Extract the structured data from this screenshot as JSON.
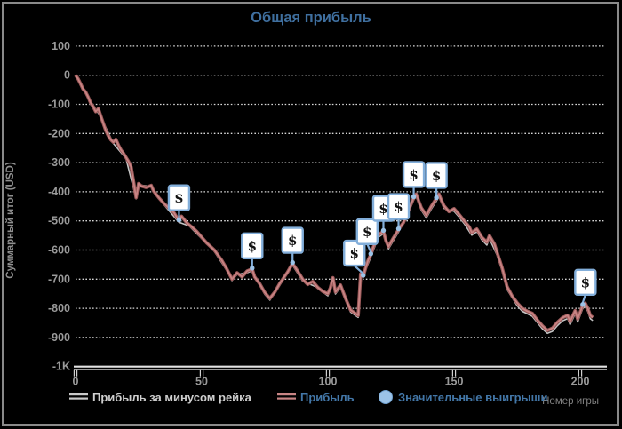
{
  "window": {
    "background": "#000000",
    "border_color": "#8a8a8a"
  },
  "title": "Общая прибыль",
  "title_color": "#3f6f9f",
  "axis_titles": {
    "y": "Суммарный итог (USD)",
    "x": "Номер игры"
  },
  "legend": {
    "items": [
      {
        "label": "Прибыль за минусом рейка",
        "swatch": "line",
        "color": "#c9c9c9",
        "label_color": "#cecece"
      },
      {
        "label": "Прибыль",
        "swatch": "line",
        "color": "#c98585",
        "label_color": "#4377a8"
      },
      {
        "label": "Значительные выигрыши",
        "swatch": "circle",
        "color": "#9cc3e8",
        "label_color": "#4377a8"
      }
    ]
  },
  "chart_data": {
    "type": "line",
    "title": "Общая прибыль",
    "xlabel": "Номер игры",
    "ylabel": "Суммарный итог (USD)",
    "xlim": [
      0,
      210
    ],
    "ylim": [
      -1000,
      100
    ],
    "grid": "dotted-horizontal",
    "legend_position": "bottom",
    "x_ticks": [
      {
        "v": 0,
        "label": "0"
      },
      {
        "v": 50,
        "label": "50"
      },
      {
        "v": 100,
        "label": "100"
      },
      {
        "v": 150,
        "label": "150"
      },
      {
        "v": 200,
        "label": "200"
      }
    ],
    "y_ticks": [
      {
        "v": 100,
        "label": "100"
      },
      {
        "v": 0,
        "label": "0"
      },
      {
        "v": -100,
        "label": "-100"
      },
      {
        "v": -200,
        "label": "-200"
      },
      {
        "v": -300,
        "label": "-300"
      },
      {
        "v": -400,
        "label": "-400"
      },
      {
        "v": -500,
        "label": "-500"
      },
      {
        "v": -600,
        "label": "-600"
      },
      {
        "v": -700,
        "label": "-700"
      },
      {
        "v": -800,
        "label": "-800"
      },
      {
        "v": -900,
        "label": "-900"
      },
      {
        "v": -1000,
        "label": "-1K"
      }
    ],
    "colors": {
      "grid": "#d8d8d8",
      "axis_top": "#e2e2e2",
      "axis_bottom": "#9a9a9a",
      "tick_label": "#9a9a9a"
    },
    "series": [
      {
        "name": "Прибыль за минусом рейка",
        "color": "#c4c4c4",
        "points": [
          [
            0,
            -3
          ],
          [
            5,
            -78
          ],
          [
            10,
            -143
          ],
          [
            15,
            -234
          ],
          [
            20,
            -286
          ],
          [
            24,
            -424
          ],
          [
            25,
            -376
          ],
          [
            30,
            -382
          ],
          [
            35,
            -444
          ],
          [
            41,
            -505
          ],
          [
            45,
            -517
          ],
          [
            50,
            -561
          ],
          [
            55,
            -605
          ],
          [
            60,
            -671
          ],
          [
            62,
            -705
          ],
          [
            64,
            -684
          ],
          [
            68,
            -678
          ],
          [
            70,
            -671
          ],
          [
            75,
            -752
          ],
          [
            77,
            -772
          ],
          [
            81,
            -720
          ],
          [
            86,
            -652
          ],
          [
            90,
            -707
          ],
          [
            95,
            -725
          ],
          [
            100,
            -757
          ],
          [
            102,
            -702
          ],
          [
            103,
            -751
          ],
          [
            105,
            -727
          ],
          [
            107,
            -773
          ],
          [
            109,
            -813
          ],
          [
            112,
            -831
          ],
          [
            113,
            -688
          ],
          [
            115,
            -668
          ],
          [
            117,
            -624
          ],
          [
            120,
            -556
          ],
          [
            122,
            -544
          ],
          [
            124,
            -596
          ],
          [
            128,
            -538
          ],
          [
            132,
            -470
          ],
          [
            134,
            -428
          ],
          [
            135,
            -416
          ],
          [
            137,
            -463
          ],
          [
            139,
            -490
          ],
          [
            141,
            -459
          ],
          [
            143,
            -432
          ],
          [
            144,
            -417
          ],
          [
            146,
            -457
          ],
          [
            150,
            -467
          ],
          [
            152,
            -487
          ],
          [
            154,
            -509
          ],
          [
            157,
            -549
          ],
          [
            159,
            -537
          ],
          [
            161,
            -565
          ],
          [
            163,
            -583
          ],
          [
            164,
            -561
          ],
          [
            167,
            -617
          ],
          [
            169,
            -670
          ],
          [
            171,
            -735
          ],
          [
            175,
            -791
          ],
          [
            177,
            -810
          ],
          [
            181,
            -827
          ],
          [
            185,
            -870
          ],
          [
            187,
            -886
          ],
          [
            189,
            -879
          ],
          [
            191,
            -859
          ],
          [
            193,
            -843
          ],
          [
            195,
            -835
          ],
          [
            196,
            -856
          ],
          [
            198,
            -819
          ],
          [
            199,
            -847
          ],
          [
            201,
            -801
          ],
          [
            202,
            -794
          ],
          [
            203,
            -811
          ],
          [
            204,
            -836
          ],
          [
            205,
            -842
          ]
        ]
      },
      {
        "name": "Прибыль",
        "color": "#c98585",
        "outline_color": "#9c5a5a",
        "points": [
          [
            0,
            0
          ],
          [
            1,
            -12
          ],
          [
            2,
            -30
          ],
          [
            3,
            -48
          ],
          [
            4,
            -58
          ],
          [
            5,
            -75
          ],
          [
            6,
            -95
          ],
          [
            7,
            -108
          ],
          [
            8,
            -125
          ],
          [
            9,
            -115
          ],
          [
            10,
            -140
          ],
          [
            11,
            -165
          ],
          [
            12,
            -190
          ],
          [
            13,
            -208
          ],
          [
            14,
            -222
          ],
          [
            15,
            -230
          ],
          [
            16,
            -220
          ],
          [
            17,
            -240
          ],
          [
            18,
            -256
          ],
          [
            19,
            -268
          ],
          [
            20,
            -282
          ],
          [
            21,
            -296
          ],
          [
            22,
            -315
          ],
          [
            23,
            -365
          ],
          [
            24,
            -420
          ],
          [
            25,
            -372
          ],
          [
            26,
            -380
          ],
          [
            28,
            -385
          ],
          [
            30,
            -378
          ],
          [
            31,
            -398
          ],
          [
            33,
            -420
          ],
          [
            35,
            -440
          ],
          [
            37,
            -456
          ],
          [
            39,
            -472
          ],
          [
            41,
            -500
          ],
          [
            42,
            -484
          ],
          [
            44,
            -506
          ],
          [
            46,
            -520
          ],
          [
            48,
            -536
          ],
          [
            50,
            -556
          ],
          [
            52,
            -576
          ],
          [
            55,
            -600
          ],
          [
            58,
            -636
          ],
          [
            60,
            -666
          ],
          [
            62,
            -700
          ],
          [
            64,
            -678
          ],
          [
            66,
            -692
          ],
          [
            68,
            -672
          ],
          [
            70,
            -665
          ],
          [
            71,
            -692
          ],
          [
            73,
            -716
          ],
          [
            75,
            -746
          ],
          [
            77,
            -766
          ],
          [
            79,
            -744
          ],
          [
            81,
            -714
          ],
          [
            84,
            -676
          ],
          [
            86,
            -646
          ],
          [
            88,
            -672
          ],
          [
            90,
            -700
          ],
          [
            92,
            -718
          ],
          [
            94,
            -708
          ],
          [
            96,
            -728
          ],
          [
            98,
            -742
          ],
          [
            100,
            -750
          ],
          [
            101,
            -730
          ],
          [
            102,
            -695
          ],
          [
            103,
            -744
          ],
          [
            105,
            -720
          ],
          [
            107,
            -766
          ],
          [
            109,
            -806
          ],
          [
            111,
            -818
          ],
          [
            112,
            -824
          ],
          [
            113,
            -682
          ],
          [
            114,
            -690
          ],
          [
            115,
            -660
          ],
          [
            116,
            -634
          ],
          [
            117,
            -616
          ],
          [
            118,
            -590
          ],
          [
            120,
            -548
          ],
          [
            122,
            -536
          ],
          [
            123,
            -568
          ],
          [
            124,
            -588
          ],
          [
            126,
            -558
          ],
          [
            128,
            -530
          ],
          [
            130,
            -505
          ],
          [
            132,
            -462
          ],
          [
            134,
            -420
          ],
          [
            135,
            -408
          ],
          [
            136,
            -432
          ],
          [
            137,
            -455
          ],
          [
            139,
            -481
          ],
          [
            141,
            -450
          ],
          [
            143,
            -423
          ],
          [
            144,
            -408
          ],
          [
            145,
            -430
          ],
          [
            146,
            -448
          ],
          [
            148,
            -468
          ],
          [
            150,
            -458
          ],
          [
            152,
            -478
          ],
          [
            154,
            -500
          ],
          [
            156,
            -520
          ],
          [
            157,
            -540
          ],
          [
            159,
            -528
          ],
          [
            161,
            -556
          ],
          [
            163,
            -573
          ],
          [
            164,
            -551
          ],
          [
            166,
            -580
          ],
          [
            167,
            -607
          ],
          [
            169,
            -660
          ],
          [
            171,
            -725
          ],
          [
            173,
            -758
          ],
          [
            175,
            -781
          ],
          [
            177,
            -800
          ],
          [
            179,
            -810
          ],
          [
            181,
            -817
          ],
          [
            183,
            -840
          ],
          [
            185,
            -860
          ],
          [
            187,
            -876
          ],
          [
            189,
            -868
          ],
          [
            191,
            -848
          ],
          [
            193,
            -832
          ],
          [
            195,
            -824
          ],
          [
            196,
            -845
          ],
          [
            198,
            -808
          ],
          [
            199,
            -836
          ],
          [
            201,
            -790
          ],
          [
            202,
            -783
          ],
          [
            203,
            -800
          ],
          [
            204,
            -825
          ],
          [
            205,
            -831
          ]
        ]
      }
    ],
    "markers": {
      "name": "Значительные выигрыши",
      "symbol": "$",
      "points": [
        [
          41,
          -500
        ],
        [
          70,
          -665
        ],
        [
          86,
          -646
        ],
        [
          114,
          -690
        ],
        [
          117,
          -616
        ],
        [
          122,
          -536
        ],
        [
          128,
          -530
        ],
        [
          134,
          -420
        ],
        [
          143,
          -423
        ],
        [
          201,
          -790
        ]
      ],
      "box_dx": [
        0,
        0,
        0,
        -10,
        -4,
        0,
        0,
        0,
        0,
        3
      ],
      "style": {
        "box_fill": "#ffffff",
        "box_border": "#82aeda",
        "dollar_color": "#111111",
        "dot_fill": "#9cc3e8"
      }
    }
  }
}
